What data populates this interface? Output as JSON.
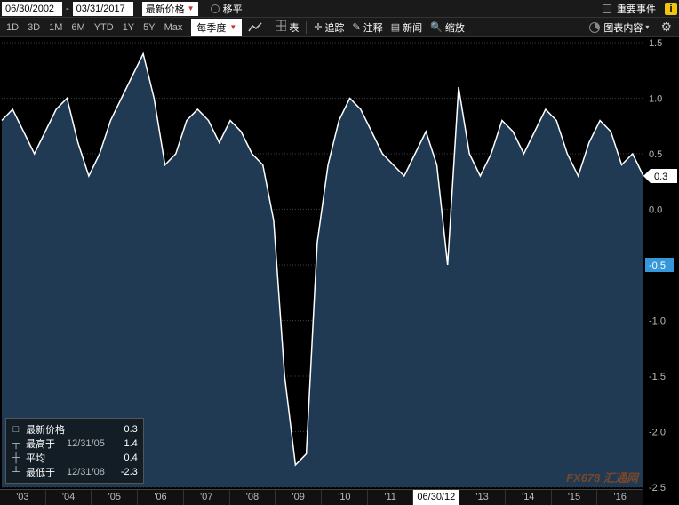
{
  "toolbar": {
    "date_from": "06/30/2002",
    "date_to": "03/31/2017",
    "price_dropdown": "最新价格",
    "ma_label": "移平",
    "events_label": "重要事件"
  },
  "ranges": [
    "1D",
    "3D",
    "1M",
    "6M",
    "YTD",
    "1Y",
    "5Y",
    "Max"
  ],
  "period": "每季度",
  "tools": {
    "table": "表",
    "track": "追踪",
    "annotate": "注释",
    "news": "新闻",
    "zoom": "缩放",
    "chart_content": "图表内容"
  },
  "chart": {
    "type": "area",
    "background_color": "#000000",
    "grid_color": "#3a3a3a",
    "fill_color": "#1f3a52",
    "line_color": "#ffffff",
    "ylim": [
      -2.5,
      1.5
    ],
    "ytick_step": 0.5,
    "yticks": [
      1.5,
      1.0,
      0.5,
      0.0,
      -0.5,
      -1.0,
      -1.5,
      -2.0,
      -2.5
    ],
    "current_value": 0.3,
    "neg_marker_value": -0.5,
    "x_labels": [
      "'03",
      "'04",
      "'05",
      "'06",
      "'07",
      "'08",
      "'09",
      "'10",
      "'11",
      "06/30/12",
      "'13",
      "'14",
      "'15",
      "'16"
    ],
    "x_highlight_index": 9,
    "values": [
      0.8,
      0.9,
      0.7,
      0.5,
      0.7,
      0.9,
      1.0,
      0.6,
      0.3,
      0.5,
      0.8,
      1.0,
      1.2,
      1.4,
      1.0,
      0.4,
      0.5,
      0.8,
      0.9,
      0.8,
      0.6,
      0.8,
      0.7,
      0.5,
      0.4,
      -0.1,
      -1.5,
      -2.3,
      -2.2,
      -0.3,
      0.4,
      0.8,
      1.0,
      0.9,
      0.7,
      0.5,
      0.4,
      0.3,
      0.5,
      0.7,
      0.4,
      -0.5,
      1.1,
      0.5,
      0.3,
      0.5,
      0.8,
      0.7,
      0.5,
      0.7,
      0.9,
      0.8,
      0.5,
      0.3,
      0.6,
      0.8,
      0.7,
      0.4,
      0.5,
      0.3
    ]
  },
  "stats": {
    "title": "最新价格",
    "rows": [
      {
        "glyph": "┬",
        "label": "最高于",
        "date": "12/31/05",
        "value": "1.4"
      },
      {
        "glyph": "┼",
        "label": "平均",
        "date": "",
        "value": "0.4"
      },
      {
        "glyph": "┴",
        "label": "最低于",
        "date": "12/31/08",
        "value": "-2.3"
      }
    ],
    "current_value": "0.3"
  },
  "watermark": "FX678 汇通网"
}
